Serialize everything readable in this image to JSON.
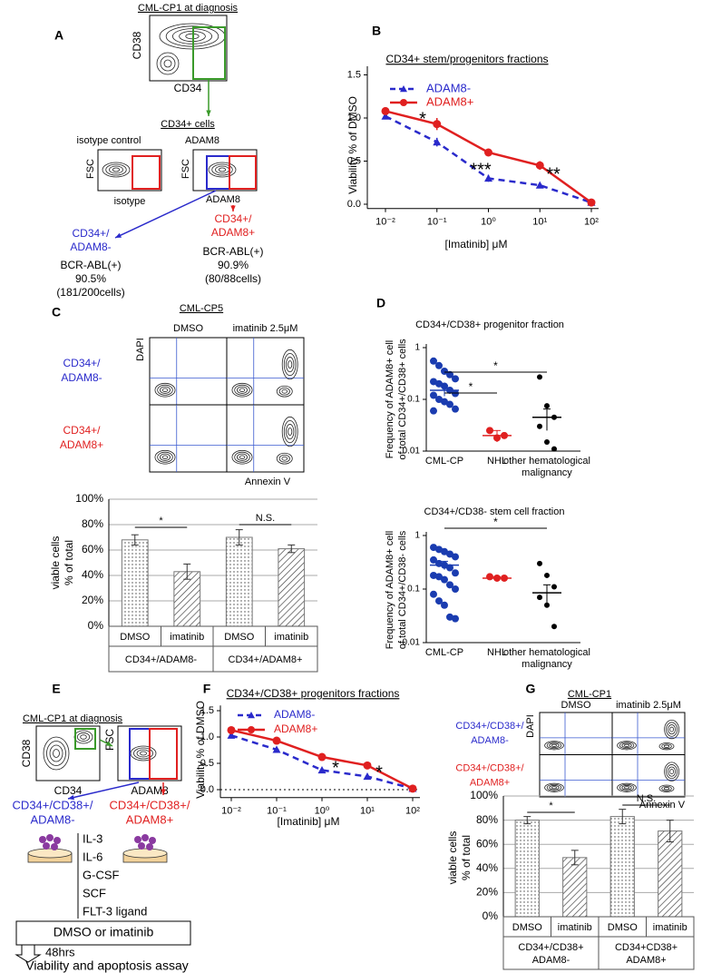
{
  "panel_labels": [
    "A",
    "B",
    "C",
    "D",
    "E",
    "F",
    "G"
  ],
  "panel_a": {
    "title": "CML-CP1 at diagnosis",
    "y_axis": "CD38",
    "x_axis": "CD34",
    "gate": "CD34+ cells",
    "isotype_plot": {
      "title": "isotype control",
      "y_axis": "FSC",
      "x_axis": "isotype"
    },
    "adam8_plot": {
      "title": "ADAM8",
      "y_axis": "FSC",
      "x_axis": "ADAM8"
    },
    "negative": {
      "name": [
        "CD34+/",
        "ADAM8-"
      ],
      "result": [
        "BCR-ABL(+)",
        "90.5%",
        "(181/200cells)"
      ]
    },
    "positive": {
      "name": [
        "CD34+/",
        "ADAM8+"
      ],
      "result": [
        "BCR-ABL(+)",
        "90.9%",
        "(80/88cells)"
      ]
    }
  },
  "panel_c_flow": {
    "title": "CML-CP5",
    "columns": [
      "DMSO",
      "imatinib 2.5μM"
    ],
    "rows": [
      [
        "CD34+/",
        "ADAM8-"
      ],
      [
        "CD34+/",
        "ADAM8+"
      ]
    ],
    "y_axis": "DAPI",
    "x_axis": "Annexin V"
  },
  "panel_e": {
    "title": "CML-CP1 at diagnosis",
    "plot1": {
      "y_axis": "CD38",
      "x_axis": "CD34"
    },
    "plot2": {
      "y_axis": "FSC",
      "x_axis": "ADAM8"
    },
    "negative": [
      "CD34+/CD38+/",
      "ADAM8-"
    ],
    "positive": [
      "CD34+/CD38+/",
      "ADAM8+"
    ],
    "cytokines": [
      "IL-3",
      "IL-6",
      "G-CSF",
      "SCF",
      "FLT-3 ligand"
    ],
    "treatment": "DMSO or imatinib",
    "duration": "48hrs",
    "assay": "Viability and apoptosis assay"
  },
  "panel_g_flow": {
    "title": "CML-CP1",
    "columns": [
      "DMSO",
      "imatinib 2.5μM"
    ],
    "rows": [
      [
        "CD34+/CD38+/",
        "ADAM8-"
      ],
      [
        "CD34+/CD38+/",
        "ADAM8+"
      ]
    ],
    "y_axis": "DAPI",
    "x_axis": "Annexin V"
  },
  "chart_data": [
    {
      "type": "line",
      "title": "CD34+ stem/progenitors fractions",
      "x_label": "[Imatinib]  μM",
      "y_label": "Viability % of DMSO",
      "x_scale": "log",
      "x": [
        0.01,
        0.1,
        1,
        10,
        100
      ],
      "xlim": [
        0.01,
        100
      ],
      "xticks": [
        {
          "value": 0.01,
          "label": "10⁻²"
        },
        {
          "value": 0.1,
          "label": "10⁻¹"
        },
        {
          "value": 1,
          "label": "10⁰"
        },
        {
          "value": 10,
          "label": "10¹"
        },
        {
          "value": 100,
          "label": "10²"
        }
      ],
      "ylim": [
        -0.05,
        1.6
      ],
      "yticks": [
        {
          "value": 0,
          "label": "0.0"
        },
        {
          "value": 0.5,
          "label": "0.5"
        },
        {
          "value": 1,
          "label": "1.0"
        },
        {
          "value": 1.5,
          "label": "1.5"
        }
      ],
      "series": [
        {
          "name": "ADAM8-",
          "color": "#2a2acb",
          "line_style": "dashed",
          "marker": "triangle",
          "values": [
            1.02,
            0.72,
            0.3,
            0.22,
            0.02
          ],
          "errors": [
            0.03,
            0.05,
            0.04,
            0.02,
            0.02
          ]
        },
        {
          "name": "ADAM8+",
          "color": "#e02020",
          "line_style": "solid",
          "marker": "circle",
          "values": [
            1.08,
            0.93,
            0.6,
            0.45,
            0.02
          ],
          "errors": [
            0.04,
            0.07,
            0.04,
            0.05,
            0.02
          ]
        }
      ],
      "annotations": [
        "*",
        "***",
        "**"
      ]
    },
    {
      "type": "bar",
      "y_label": [
        "viable cells",
        "% of total"
      ],
      "categories": [
        "DMSO",
        "imatinib",
        "DMSO",
        "imatinib"
      ],
      "groups": [
        [
          "CD34+/ADAM8-"
        ],
        [
          "CD34+/ADAM8+"
        ]
      ],
      "values": [
        68,
        43,
        70,
        61
      ],
      "errors": [
        4,
        6,
        6,
        3
      ],
      "ylim": [
        0,
        100
      ],
      "yticks": [
        {
          "value": 0,
          "label": "0%"
        },
        {
          "value": 20,
          "label": "20%"
        },
        {
          "value": 40,
          "label": "40%"
        },
        {
          "value": 60,
          "label": "60%"
        },
        {
          "value": 80,
          "label": "80%"
        },
        {
          "value": 100,
          "label": "100%"
        }
      ],
      "grid": true,
      "significance": [
        "*",
        "N.S."
      ]
    },
    {
      "type": "scatter",
      "title": "CD34+/CD38+ progenitor fraction",
      "y_label": [
        "Frequency of ADAM8+ cell",
        "of total CD34+/CD38+ cells"
      ],
      "y_scale": "log",
      "categories": [
        "CML-CP",
        "NHL",
        "other hematological malignancy"
      ],
      "colors": [
        "#1a3cb0",
        "#e02020",
        "#000000"
      ],
      "points": [
        [
          0.55,
          0.45,
          0.35,
          0.3,
          0.25,
          0.22,
          0.2,
          0.18,
          0.15,
          0.13,
          0.12,
          0.1,
          0.09,
          0.08,
          0.065,
          0.06
        ],
        [
          0.025,
          0.018,
          0.02
        ],
        [
          0.27,
          0.075,
          0.045,
          0.03,
          0.015,
          0.011
        ]
      ],
      "means": [
        0.15,
        0.02,
        0.045
      ],
      "errors": [
        0.035,
        0.005,
        0.02
      ],
      "ylim": [
        0.01,
        1
      ],
      "yticks": [
        0.01,
        0.1,
        1
      ],
      "significance": [
        "*",
        "*"
      ]
    },
    {
      "type": "scatter",
      "title": "CD34+/CD38- stem cell fraction",
      "y_label": [
        "Frequency of ADAM8+ cell",
        "of total CD34+/CD38- cells"
      ],
      "y_scale": "log",
      "categories": [
        "CML-CP",
        "NHL",
        "other hematological malignancy"
      ],
      "colors": [
        "#1a3cb0",
        "#e02020",
        "#000000"
      ],
      "points": [
        [
          0.6,
          0.55,
          0.5,
          0.45,
          0.4,
          0.35,
          0.3,
          0.28,
          0.25,
          0.2,
          0.18,
          0.17,
          0.15,
          0.12,
          0.1,
          0.08,
          0.06,
          0.05,
          0.03,
          0.028
        ],
        [
          0.17,
          0.16,
          0.16
        ],
        [
          0.3,
          0.18,
          0.11,
          0.07,
          0.05,
          0.02
        ]
      ],
      "means": [
        0.28,
        0.16,
        0.085
      ],
      "errors": [
        0.05,
        0.01,
        0.035
      ],
      "ylim": [
        0.01,
        1
      ],
      "yticks": [
        0.01,
        0.1,
        1
      ],
      "significance": [
        "*"
      ]
    },
    {
      "type": "line",
      "title": "CD34+/CD38+ progenitors fractions",
      "x_label": "[Imatinib]  μM",
      "y_label": "Viability % of DMSO",
      "x_scale": "log",
      "x": [
        0.01,
        0.1,
        1,
        10,
        100
      ],
      "xlim": [
        0.01,
        100
      ],
      "xticks": [
        {
          "value": 0.01,
          "label": "10⁻²"
        },
        {
          "value": 0.1,
          "label": "10⁻¹"
        },
        {
          "value": 1,
          "label": "10⁰"
        },
        {
          "value": 10,
          "label": "10¹"
        },
        {
          "value": 100,
          "label": "10²"
        }
      ],
      "ylim": [
        -0.15,
        1.6
      ],
      "yticks": [
        {
          "value": 0,
          "label": "0.0"
        },
        {
          "value": 0.5,
          "label": "0.5"
        },
        {
          "value": 1,
          "label": "1.0"
        },
        {
          "value": 1.5,
          "label": "1.5"
        }
      ],
      "zero_line": true,
      "series": [
        {
          "name": "ADAM8-",
          "color": "#2a2acb",
          "line_style": "dashed",
          "marker": "triangle",
          "values": [
            1.03,
            0.76,
            0.37,
            0.25,
            0.02
          ],
          "errors": [
            0.03,
            0.03,
            0.04,
            0.03,
            0.02
          ]
        },
        {
          "name": "ADAM8+",
          "color": "#e02020",
          "line_style": "solid",
          "marker": "circle",
          "values": [
            1.13,
            0.93,
            0.62,
            0.46,
            0.02
          ],
          "errors": [
            0.06,
            0.04,
            0.05,
            0.04,
            0.02
          ]
        }
      ],
      "annotations": [
        "*",
        "*"
      ]
    },
    {
      "type": "bar",
      "y_label": [
        "viable cells",
        "% of total"
      ],
      "categories": [
        "DMSO",
        "imatinib",
        "DMSO",
        "imatinib"
      ],
      "groups": [
        [
          "CD34+/CD38+",
          "ADAM8-"
        ],
        [
          "CD34+CD38+",
          "ADAM8+"
        ]
      ],
      "values": [
        80,
        49,
        83,
        71
      ],
      "errors": [
        3,
        6,
        6,
        9
      ],
      "ylim": [
        0,
        100
      ],
      "yticks": [
        {
          "value": 0,
          "label": "0%"
        },
        {
          "value": 20,
          "label": "20%"
        },
        {
          "value": 40,
          "label": "40%"
        },
        {
          "value": 60,
          "label": "60%"
        },
        {
          "value": 80,
          "label": "80%"
        },
        {
          "value": 100,
          "label": "100%"
        }
      ],
      "grid": true,
      "significance": [
        "*",
        "N.S."
      ]
    }
  ]
}
